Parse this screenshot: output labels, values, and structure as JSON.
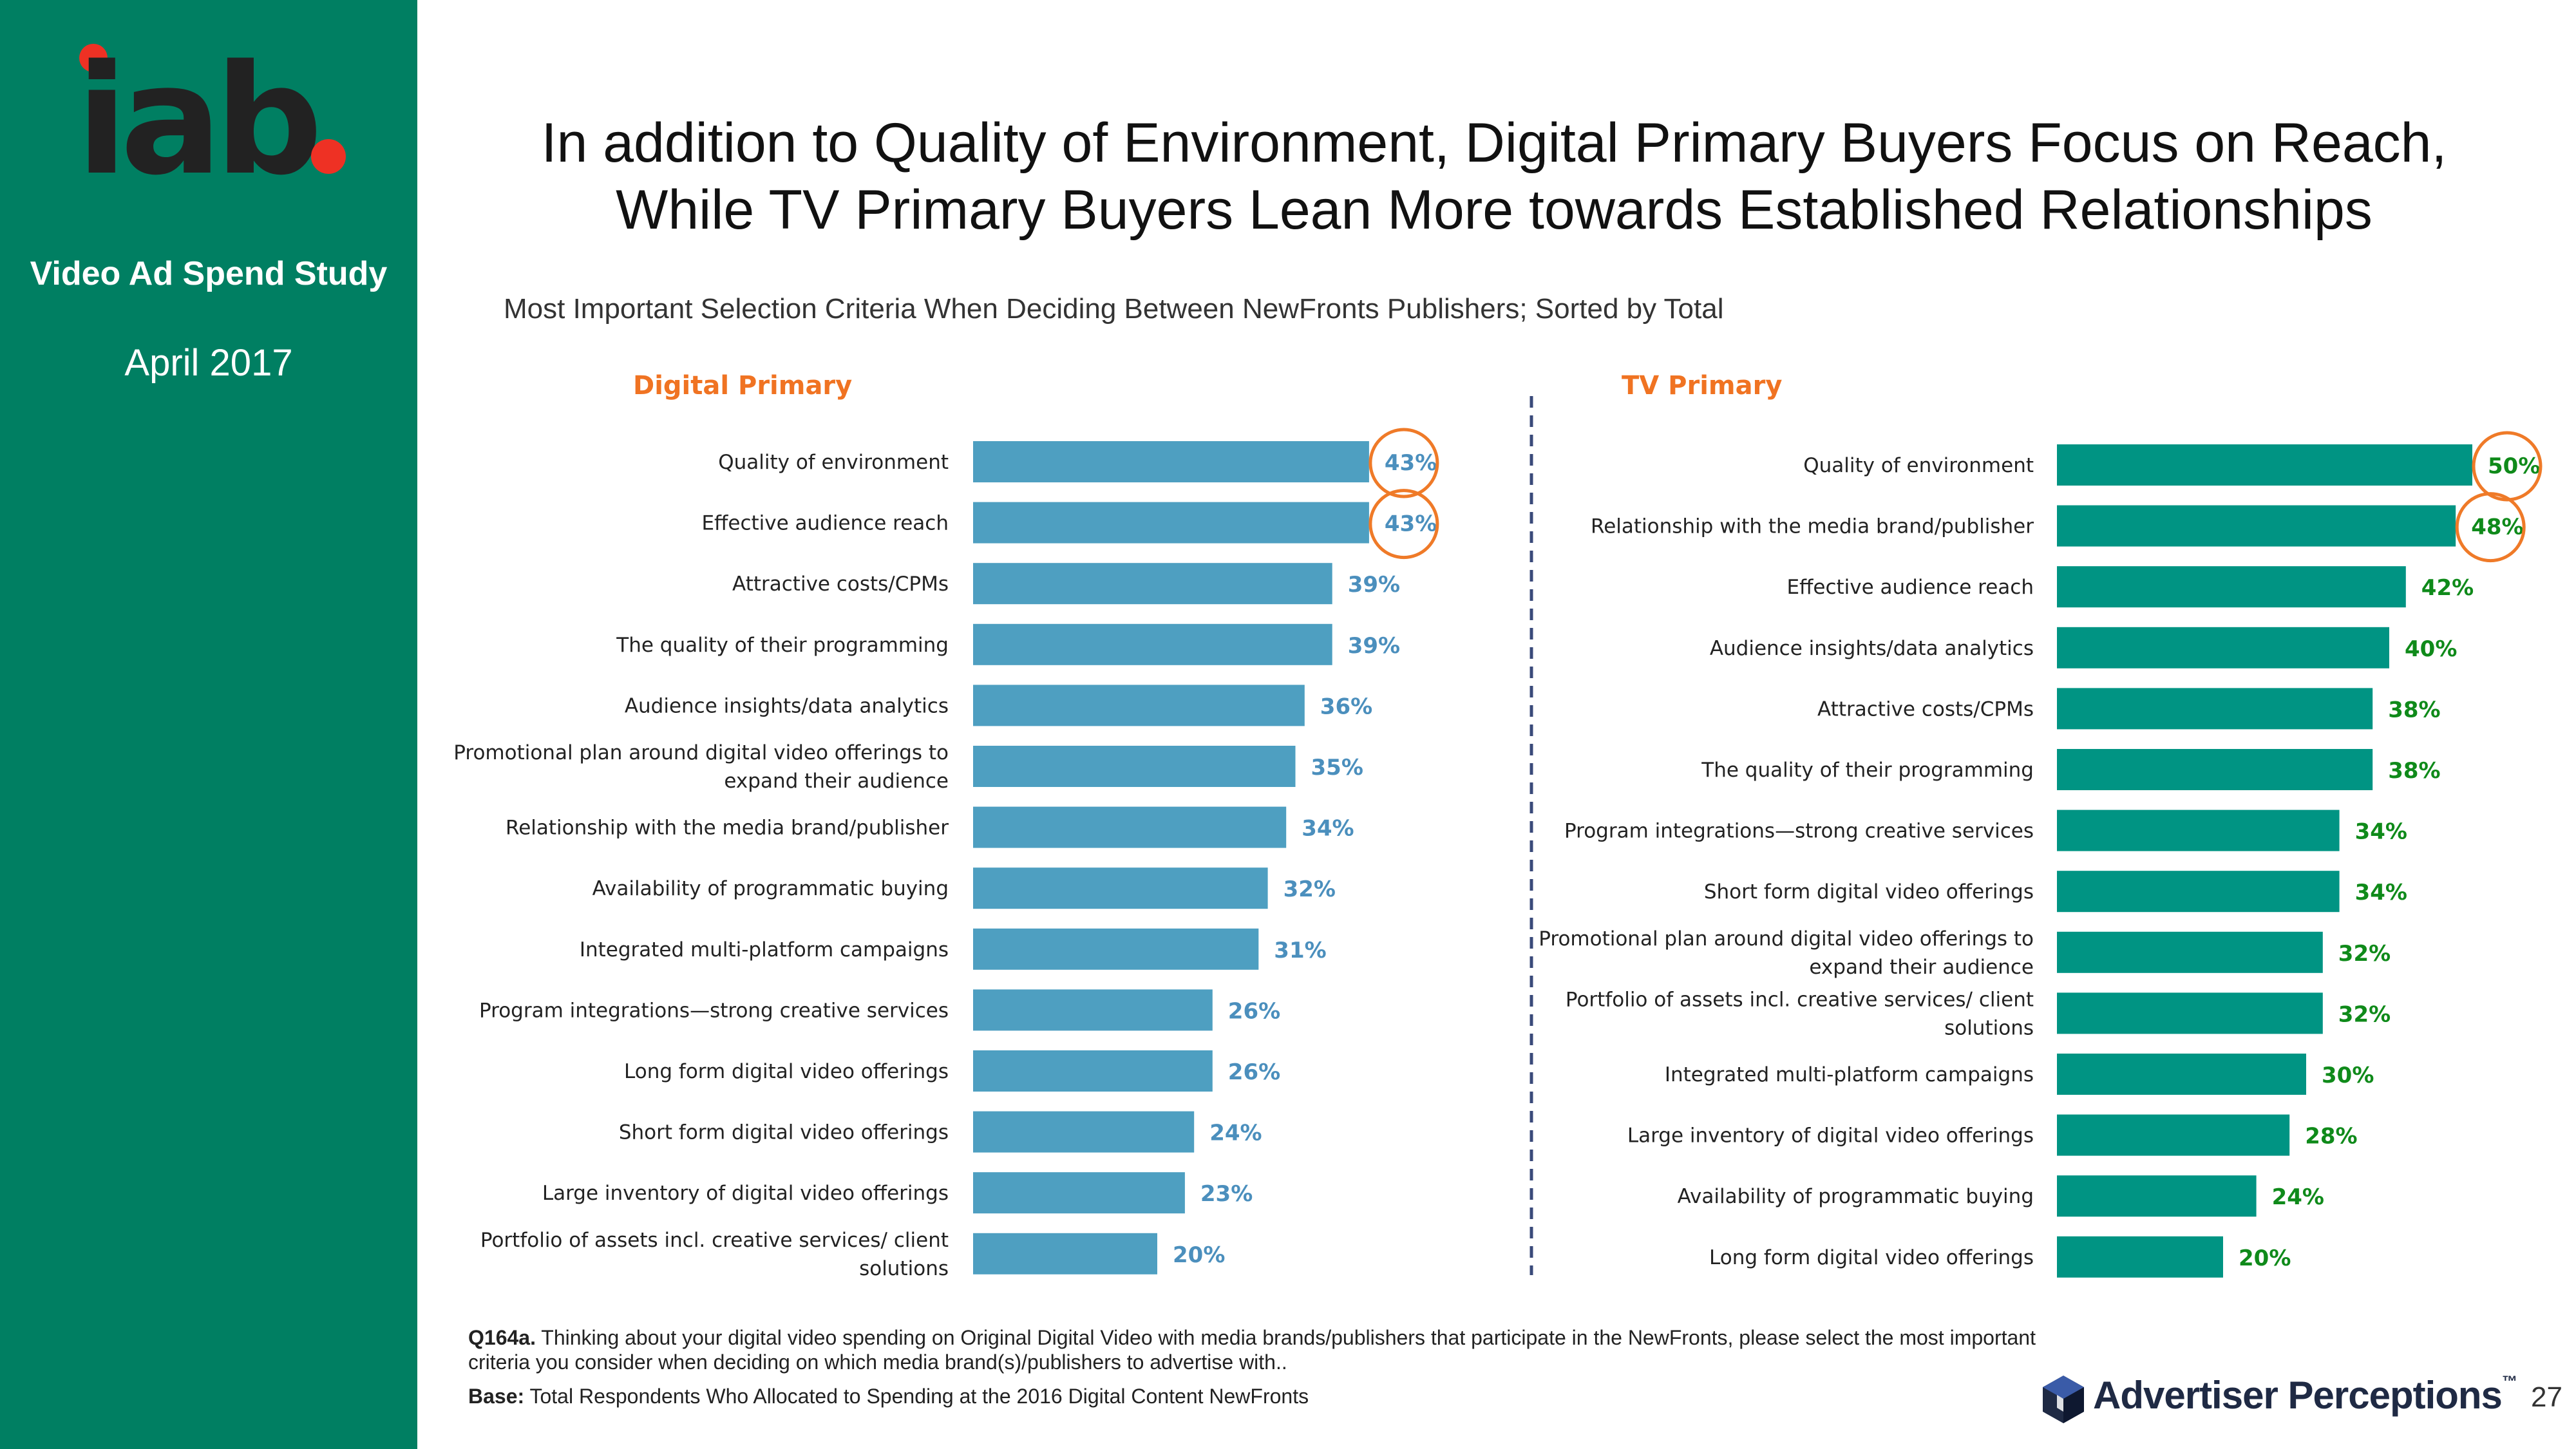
{
  "sidebar": {
    "logo_text": "iab.",
    "study": "Video Ad Spend Study",
    "date": "April 2017"
  },
  "header": {
    "title_line1": "In addition to Quality of Environment, Digital Primary Buyers Focus on Reach,",
    "title_line2": "While TV Primary Buyers Lean More towards Established Relationships",
    "subtitle": "Most Important Selection Criteria When Deciding Between NewFronts Publishers; Sorted by Total"
  },
  "colors": {
    "sidebar": "#007f62",
    "digital_bar": "#4e9fc1",
    "tv_bar": "#009483",
    "digital_label": "#4b8fbd",
    "tv_label": "#0f8a1a",
    "panel_title": "#f07322",
    "highlight_circle": "#ef7a28",
    "divider": "#3a4a7a"
  },
  "chart_data": [
    {
      "type": "bar",
      "orientation": "horizontal",
      "title": "Digital Primary",
      "value_suffix": "%",
      "highlighted": [
        0,
        1
      ],
      "categories": [
        "Quality of environment",
        "Effective audience reach",
        "Attractive costs/CPMs",
        "The quality of their programming",
        "Audience insights/data analytics",
        "Promotional plan around digital video offerings to expand their audience",
        "Relationship with the media brand/publisher",
        "Availability of programmatic buying",
        "Integrated multi-platform campaigns",
        "Program integrations—strong creative services",
        "Long form digital video offerings",
        "Short form digital video offerings",
        "Large inventory of digital video offerings",
        "Portfolio of assets incl. creative services/ client solutions"
      ],
      "values": [
        43,
        43,
        39,
        39,
        36,
        35,
        34,
        32,
        31,
        26,
        26,
        24,
        23,
        20
      ]
    },
    {
      "type": "bar",
      "orientation": "horizontal",
      "title": "TV Primary",
      "value_suffix": "%",
      "highlighted": [
        0,
        1
      ],
      "categories": [
        "Quality of environment",
        "Relationship with the media brand/publisher",
        "Effective audience reach",
        "Audience insights/data analytics",
        "Attractive costs/CPMs",
        "The quality of their programming",
        "Program integrations—strong creative services",
        "Short form digital video offerings",
        "Promotional plan around digital video offerings to expand their audience",
        "Portfolio of assets incl. creative services/ client solutions",
        "Integrated multi-platform campaigns",
        "Large inventory of digital video offerings",
        "Availability of programmatic buying",
        "Long form digital video offerings"
      ],
      "values": [
        50,
        48,
        42,
        40,
        38,
        38,
        34,
        34,
        32,
        32,
        30,
        28,
        24,
        20
      ]
    }
  ],
  "footer": {
    "question_label": "Q164a.",
    "question_text": "Thinking about your digital video spending on Original Digital Video with media brands/publishers that participate in the NewFronts, please select the most important criteria you consider when deciding on which media brand(s)/publishers to advertise with..",
    "base_label": "Base:",
    "base_text": "Total Respondents Who Allocated to Spending at the 2016 Digital Content NewFronts",
    "brand": "Advertiser Perceptions",
    "brand_tm": "™",
    "page_number": "27"
  }
}
